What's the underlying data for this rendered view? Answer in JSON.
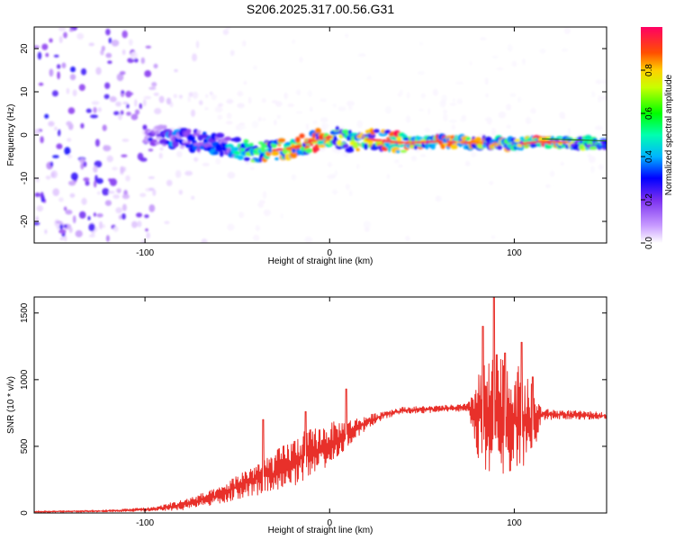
{
  "figure": {
    "title": "S206.2025.317.00.56.G31"
  },
  "colors": {
    "snr_line": "#e8302a",
    "axis": "#000000",
    "ridge": "#1a7a1a",
    "colormap": [
      "#ffffff",
      "#e9d5ff",
      "#8b3cf0",
      "#0000ff",
      "#00c8ff",
      "#00ff80",
      "#ffff00",
      "#ff6000",
      "#ff0060"
    ]
  },
  "chart_data": [
    {
      "id": "spectrogram",
      "type": "heatmap",
      "title": "",
      "xlabel": "Height of straight line (km)",
      "ylabel": "Frequency (Hz)",
      "xlim": [
        -160,
        150
      ],
      "ylim": [
        -25,
        25
      ],
      "xticks": [
        -100,
        0,
        100
      ],
      "xtick_labels": [
        "-100",
        "0",
        "100"
      ],
      "yticks": [
        -20,
        -10,
        0,
        10,
        20
      ],
      "ytick_labels": [
        "-20",
        "-10",
        "0",
        "10",
        "20"
      ],
      "colorbar": {
        "label": "Normalized spectral amplitude",
        "range": [
          0,
          1
        ],
        "ticks": [
          0.0,
          0.2,
          0.4,
          0.6,
          0.8
        ],
        "tick_labels": [
          "0.0",
          "0.2",
          "0.4",
          "0.6",
          "0.8"
        ]
      },
      "ridge": {
        "x": [
          -100,
          -85,
          -70,
          -55,
          -40,
          -30,
          -20,
          -10,
          0,
          10,
          20,
          40,
          60,
          80,
          100,
          115,
          150
        ],
        "freq_hz": [
          0,
          -0.5,
          -1.5,
          -2.5,
          -4,
          -3.5,
          -3,
          -1.5,
          -0.5,
          -1.5,
          -1,
          -1.8,
          -1.5,
          -1.8,
          -2.2,
          -1.5,
          -2
        ],
        "amplitude": [
          0.3,
          0.45,
          0.4,
          0.55,
          0.7,
          0.85,
          0.8,
          0.9,
          0.85,
          0.75,
          0.8,
          0.95,
          0.9,
          0.8,
          0.75,
          0.95,
          0.55
        ]
      },
      "noise_amplitude_by_x": {
        "x": [
          -160,
          -100,
          -95,
          -60,
          -40,
          0,
          150
        ],
        "amplitude": [
          0.25,
          0.2,
          0.12,
          0.05,
          0.03,
          0.02,
          0.02
        ]
      }
    },
    {
      "id": "snr",
      "type": "line",
      "title": "",
      "xlabel": "Height of straight line (km)",
      "ylabel": "SNR (10 * v/v)",
      "xlim": [
        -160,
        150
      ],
      "ylim": [
        0,
        1620
      ],
      "xticks": [
        -100,
        0,
        100
      ],
      "xtick_labels": [
        "-100",
        "0",
        "100"
      ],
      "yticks": [
        0,
        500,
        1000,
        1500
      ],
      "ytick_labels": [
        "0",
        "500",
        "1000",
        "1500"
      ],
      "envelope": {
        "x": [
          -160,
          -120,
          -95,
          -80,
          -60,
          -45,
          -30,
          -15,
          0,
          10,
          20,
          30,
          40,
          60,
          75,
          80,
          90,
          100,
          110,
          115,
          150
        ],
        "mean": [
          10,
          15,
          30,
          60,
          130,
          230,
          300,
          420,
          520,
          600,
          680,
          740,
          770,
          780,
          790,
          740,
          700,
          720,
          680,
          740,
          730
        ],
        "spread": [
          5,
          8,
          15,
          40,
          60,
          110,
          160,
          190,
          160,
          100,
          50,
          30,
          25,
          25,
          30,
          320,
          500,
          420,
          280,
          40,
          25
        ]
      },
      "peaks": [
        {
          "x": -36,
          "value": 700
        },
        {
          "x": -13,
          "value": 760
        },
        {
          "x": 9,
          "value": 930
        },
        {
          "x": 89,
          "value": 1620
        },
        {
          "x": 83,
          "value": 1400
        },
        {
          "x": 95,
          "value": 1200
        },
        {
          "x": 104,
          "value": 1280
        },
        {
          "x": 110,
          "value": 1020
        }
      ]
    }
  ]
}
